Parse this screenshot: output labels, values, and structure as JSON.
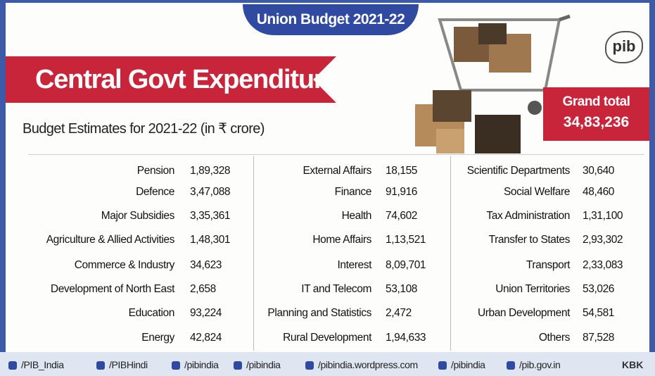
{
  "header": {
    "banner": "Union Budget 2021-22",
    "title": "Central Govt Expenditure",
    "subtitle": "Budget Estimates for 2021-22 (in ₹ crore)",
    "logo": "pib"
  },
  "grand_total": {
    "label": "Grand total",
    "value": "34,83,236"
  },
  "table": {
    "columns": [
      [
        [
          "Pension",
          "1,89,328"
        ],
        [
          "Defence",
          "3,47,088"
        ],
        [
          "Major Subsidies",
          "3,35,361"
        ],
        [
          "Agriculture & Allied Activities",
          "1,48,301"
        ],
        [
          "Commerce & Industry",
          "34,623"
        ],
        [
          "Development of North East",
          "2,658"
        ],
        [
          "Education",
          "93,224"
        ],
        [
          "Energy",
          "42,824"
        ]
      ],
      [
        [
          "External Affairs",
          "18,155"
        ],
        [
          "Finance",
          "91,916"
        ],
        [
          "Health",
          "74,602"
        ],
        [
          "Home Affairs",
          "1,13,521"
        ],
        [
          "Interest",
          "8,09,701"
        ],
        [
          "IT and Telecom",
          "53,108"
        ],
        [
          "Planning and Statistics",
          "2,472"
        ],
        [
          "Rural Development",
          "1,94,633"
        ]
      ],
      [
        [
          "Scientific Departments",
          "30,640"
        ],
        [
          "Social Welfare",
          "48,460"
        ],
        [
          "Tax Administration",
          "1,31,100"
        ],
        [
          "Transfer to States",
          "2,93,302"
        ],
        [
          "Transport",
          "2,33,083"
        ],
        [
          "Union Territories",
          "53,026"
        ],
        [
          "Urban Development",
          "54,581"
        ],
        [
          "Others",
          "87,528"
        ]
      ]
    ]
  },
  "footer": {
    "links": [
      "/PIB_India",
      "/PIBHindi",
      "/pibindia",
      "/pibindia",
      "/pibindia.wordpress.com",
      "/pibindia",
      "/pib.gov.in"
    ],
    "credit": "KBK"
  }
}
